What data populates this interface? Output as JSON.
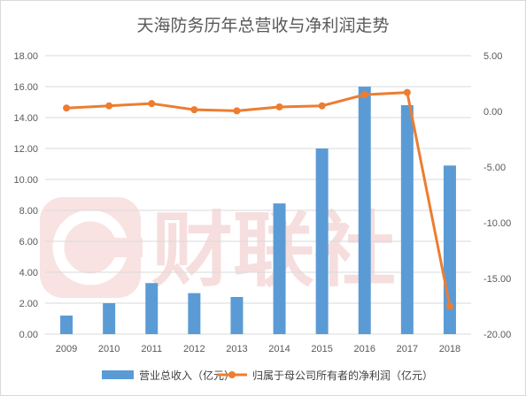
{
  "chart_data": {
    "type": "bar+line",
    "title": "天海防务历年总营收与净利润走势",
    "categories": [
      "2009",
      "2010",
      "2011",
      "2012",
      "2013",
      "2014",
      "2015",
      "2016",
      "2017",
      "2018"
    ],
    "series": [
      {
        "name": "营业总收入（亿元）",
        "type": "bar",
        "axis": "left",
        "color": "#5b9bd5",
        "values": [
          1.2,
          2.0,
          3.3,
          2.65,
          2.4,
          8.45,
          12.0,
          16.0,
          14.8,
          10.9
        ]
      },
      {
        "name": "归属于母公司所有者的净利润（亿元）",
        "type": "line",
        "axis": "right",
        "color": "#ed7d31",
        "values": [
          0.3,
          0.5,
          0.7,
          0.15,
          0.05,
          0.4,
          0.5,
          1.5,
          1.7,
          -17.5
        ]
      }
    ],
    "left_axis": {
      "ylim": [
        0,
        18
      ],
      "ticks": [
        "0.00",
        "2.00",
        "4.00",
        "6.00",
        "8.00",
        "10.00",
        "12.00",
        "14.00",
        "16.00",
        "18.00"
      ]
    },
    "right_axis": {
      "ylim": [
        -20,
        5
      ],
      "ticks": [
        "-20.00",
        "-15.00",
        "-10.00",
        "-5.00",
        "0.00",
        "5.00"
      ]
    },
    "grid": true,
    "legend_position": "bottom",
    "watermark": "财联社"
  }
}
